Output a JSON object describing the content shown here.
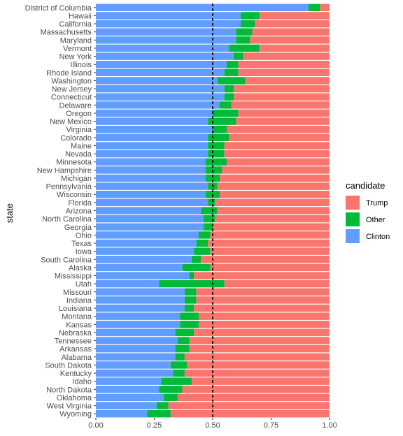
{
  "chart_data": {
    "type": "bar",
    "orientation": "horizontal",
    "stacked": "fill",
    "ylabel": "state",
    "xlabel": "",
    "xlim": [
      0,
      1
    ],
    "xticks": [
      "0.00",
      "0.25",
      "0.50",
      "0.75",
      "1.00"
    ],
    "reference_line": 0.5,
    "legend": {
      "title": "candidate",
      "position": "right"
    },
    "colors": {
      "Trump": "#F8766D",
      "Other": "#00BA38",
      "Clinton": "#619CFF"
    },
    "categories": [
      "District of Columbia",
      "Hawaii",
      "California",
      "Massachusetts",
      "Maryland",
      "Vermont",
      "New York",
      "Illinois",
      "Rhode Island",
      "Washington",
      "New Jersey",
      "Connecticut",
      "Delaware",
      "Oregon",
      "New Mexico",
      "Virginia",
      "Colorado",
      "Maine",
      "Nevada",
      "Minnesota",
      "New Hampshire",
      "Michigan",
      "Pennsylvania",
      "Wisconsin",
      "Florida",
      "Arizona",
      "North Carolina",
      "Georgia",
      "Ohio",
      "Texas",
      "Iowa",
      "South Carolina",
      "Alaska",
      "Mississippi",
      "Utah",
      "Missouri",
      "Indiana",
      "Louisiana",
      "Montana",
      "Kansas",
      "Nebraska",
      "Tennessee",
      "Arkansas",
      "Alabama",
      "South Dakota",
      "Kentucky",
      "Idaho",
      "North Dakota",
      "Oklahoma",
      "West Virginia",
      "Wyoming"
    ],
    "series": [
      {
        "name": "Clinton",
        "values": [
          0.91,
          0.62,
          0.62,
          0.6,
          0.6,
          0.57,
          0.59,
          0.56,
          0.55,
          0.52,
          0.55,
          0.55,
          0.53,
          0.5,
          0.48,
          0.5,
          0.48,
          0.48,
          0.48,
          0.47,
          0.47,
          0.47,
          0.48,
          0.47,
          0.48,
          0.45,
          0.46,
          0.46,
          0.44,
          0.43,
          0.42,
          0.41,
          0.37,
          0.4,
          0.27,
          0.38,
          0.38,
          0.38,
          0.36,
          0.36,
          0.34,
          0.35,
          0.34,
          0.34,
          0.32,
          0.33,
          0.28,
          0.27,
          0.29,
          0.26,
          0.22
        ]
      },
      {
        "name": "Other",
        "values": [
          0.05,
          0.08,
          0.06,
          0.07,
          0.06,
          0.13,
          0.04,
          0.05,
          0.06,
          0.12,
          0.04,
          0.04,
          0.05,
          0.11,
          0.12,
          0.06,
          0.09,
          0.07,
          0.07,
          0.09,
          0.07,
          0.06,
          0.04,
          0.06,
          0.03,
          0.07,
          0.05,
          0.04,
          0.05,
          0.05,
          0.07,
          0.04,
          0.12,
          0.02,
          0.28,
          0.05,
          0.05,
          0.04,
          0.08,
          0.08,
          0.08,
          0.05,
          0.06,
          0.04,
          0.07,
          0.05,
          0.13,
          0.1,
          0.06,
          0.05,
          0.1
        ]
      },
      {
        "name": "Trump",
        "values": [
          0.04,
          0.3,
          0.32,
          0.33,
          0.34,
          0.3,
          0.37,
          0.39,
          0.39,
          0.36,
          0.41,
          0.41,
          0.42,
          0.39,
          0.4,
          0.44,
          0.43,
          0.45,
          0.45,
          0.44,
          0.46,
          0.47,
          0.48,
          0.47,
          0.49,
          0.48,
          0.49,
          0.5,
          0.51,
          0.52,
          0.51,
          0.55,
          0.51,
          0.58,
          0.45,
          0.57,
          0.57,
          0.58,
          0.56,
          0.56,
          0.58,
          0.6,
          0.6,
          0.62,
          0.61,
          0.62,
          0.59,
          0.63,
          0.65,
          0.69,
          0.68
        ]
      }
    ]
  }
}
